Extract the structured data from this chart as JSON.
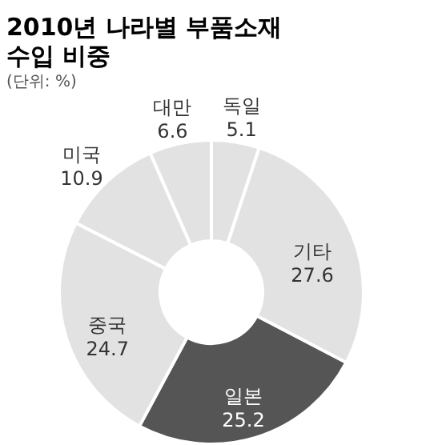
{
  "chart_data": {
    "type": "donut",
    "title": [
      "2010년 나라별 부품소재",
      "수입 비중"
    ],
    "subtitle": "(단위: %)",
    "categories": [
      "독일",
      "기타",
      "일본",
      "중국",
      "미국",
      "대만"
    ],
    "values": [
      5.1,
      27.6,
      25.2,
      24.7,
      10.9,
      6.6
    ],
    "colors": [
      "#e2e2e2",
      "#e2e2e2",
      "#555555",
      "#e2e2e2",
      "#e2e2e2",
      "#e2e2e2"
    ],
    "data_labels": true,
    "legend": false
  }
}
